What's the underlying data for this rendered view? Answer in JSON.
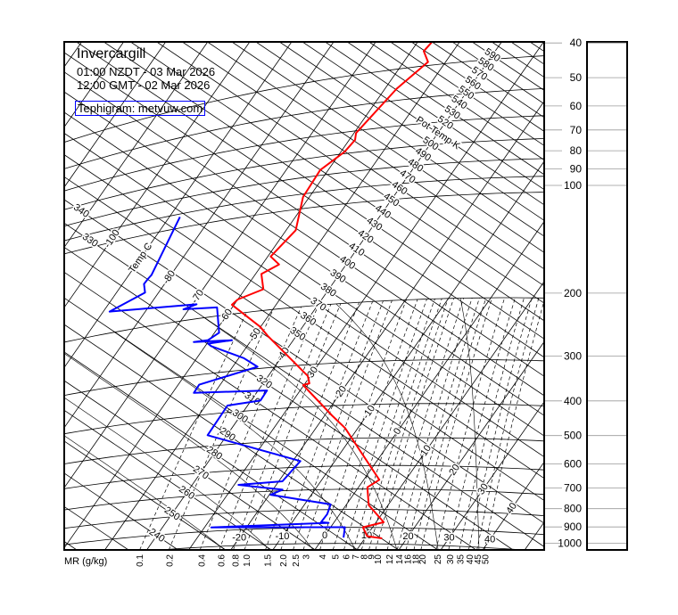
{
  "header": {
    "title": "Invercargill",
    "local_time": "01:00 NZDT - 03 Mar 2026",
    "gmt_time": "12:00 GMT - 02 Mar 2026",
    "credit": "Tephigram: metvuw.com"
  },
  "chart_data": {
    "type": "line",
    "subtype": "tephigram",
    "isotherm_axis_label": "Temp C",
    "isentrope_axis_label": "Pot Temp K",
    "mixing_ratio_axis_label": "MR (g/kg)",
    "pressure_ticks": [
      40,
      50,
      60,
      70,
      80,
      90,
      100,
      200,
      300,
      400,
      500,
      600,
      700,
      800,
      900,
      1000
    ],
    "isotherm_labels_diagonal": [
      "-100",
      "Temp C",
      "-80",
      "-70",
      "-60",
      "-50",
      "-40",
      "-30",
      "-20",
      "-10",
      "0",
      "10",
      "20",
      "30",
      "40",
      "50"
    ],
    "isotherm_labels_bottom": [
      "-20",
      "-10",
      "0",
      "10",
      "20",
      "30",
      "40"
    ],
    "isentrope_labels": [
      "240",
      "250",
      "260",
      "270",
      "280",
      "290",
      "300",
      "310",
      "320",
      "330",
      "340",
      "350",
      "360",
      "370",
      "380",
      "390",
      "400",
      "410",
      "420",
      "430",
      "440",
      "450",
      "460",
      "470",
      "480",
      "490",
      "500",
      "Pot Temp K",
      "520",
      "530",
      "540",
      "550",
      "560",
      "570",
      "580",
      "590"
    ],
    "mixing_ratio_labels": [
      "0.1",
      "0.2",
      "0.4",
      "0.6",
      "0.8",
      "1.0",
      "1.5",
      "2.0",
      "2.5",
      "3",
      "4",
      "5",
      "6",
      "7",
      "8",
      "9",
      "10",
      "12",
      "14",
      "16",
      "18",
      "20",
      "25",
      "30",
      "35",
      "40",
      "45",
      "50"
    ],
    "temperature_range_c": [
      -160,
      60
    ],
    "potential_temperature_range_k": [
      200,
      700
    ],
    "pressure_range_hpa": [
      1000,
      40
    ],
    "grid": true,
    "colors": {
      "temperature": "#ff0000",
      "dewpoint": "#0000ff",
      "credit_border": "#0000ff",
      "grid": "#000000"
    },
    "temperature_profile": [
      {
        "p": 965,
        "t": 14.1
      },
      {
        "p": 953,
        "t": 10.2
      },
      {
        "p": 899,
        "t": 7.7
      },
      {
        "p": 869,
        "t": 11.8
      },
      {
        "p": 778,
        "t": 5.4
      },
      {
        "p": 692,
        "t": 2.1
      },
      {
        "p": 659,
        "t": 3.7
      },
      {
        "p": 466,
        "t": -13.1
      },
      {
        "p": 427,
        "t": -18.3
      },
      {
        "p": 344,
        "t": -30.2
      },
      {
        "p": 341,
        "t": -29.0
      },
      {
        "p": 324,
        "t": -30.6
      },
      {
        "p": 240,
        "t": -46.8
      },
      {
        "p": 224,
        "t": -50.1
      },
      {
        "p": 187,
        "t": -60.5
      },
      {
        "p": 181,
        "t": -60.0
      },
      {
        "p": 172,
        "t": -55.6
      },
      {
        "p": 154,
        "t": -58.6
      },
      {
        "p": 146,
        "t": -56.0
      },
      {
        "p": 137,
        "t": -59.3
      },
      {
        "p": 116,
        "t": -57.7
      },
      {
        "p": 92,
        "t": -61.5
      },
      {
        "p": 77,
        "t": -61.9
      },
      {
        "p": 69,
        "t": -59.1
      },
      {
        "p": 64,
        "t": -58.6
      },
      {
        "p": 61,
        "t": -59.5
      },
      {
        "p": 46,
        "t": -57.2
      },
      {
        "p": 39,
        "t": -54.2
      },
      {
        "p": 36,
        "t": -57.0
      },
      {
        "p": 34,
        "t": -56.6
      }
    ],
    "dewpoint_profile": [
      {
        "p": 962,
        "t": 4.8
      },
      {
        "p": 899,
        "t": 3.4
      },
      {
        "p": 877,
        "t": -28.4
      },
      {
        "p": 873,
        "t": -1.2
      },
      {
        "p": 869,
        "t": -3.1
      },
      {
        "p": 824,
        "t": -3.0
      },
      {
        "p": 773,
        "t": -3.8
      },
      {
        "p": 717,
        "t": -19.7
      },
      {
        "p": 695,
        "t": -17.7
      },
      {
        "p": 663,
        "t": -29.0
      },
      {
        "p": 657,
        "t": -19.1
      },
      {
        "p": 576,
        "t": -18.2
      },
      {
        "p": 463,
        "t": -44.6
      },
      {
        "p": 381,
        "t": -44.8
      },
      {
        "p": 375,
        "t": -37.8
      },
      {
        "p": 351,
        "t": -37.9
      },
      {
        "p": 340,
        "t": -54.9
      },
      {
        "p": 322,
        "t": -55.0
      },
      {
        "p": 296,
        "t": -44.1
      },
      {
        "p": 276,
        "t": -48.8
      },
      {
        "p": 247,
        "t": -58.6
      },
      {
        "p": 242,
        "t": -59.7
      },
      {
        "p": 241,
        "t": -54.6
      },
      {
        "p": 236,
        "t": -63.4
      },
      {
        "p": 236,
        "t": -60.3
      },
      {
        "p": 226,
        "t": -58.9
      },
      {
        "p": 188,
        "t": -63.6
      },
      {
        "p": 184,
        "t": -71.3
      },
      {
        "p": 180,
        "t": -69.0
      },
      {
        "p": 170,
        "t": -88.5
      },
      {
        "p": 155,
        "t": -83.2
      },
      {
        "p": 145,
        "t": -84.9
      },
      {
        "p": 140,
        "t": -84.8
      },
      {
        "p": 137,
        "t": -84.6
      },
      {
        "p": 92,
        "t": -87.5
      }
    ]
  }
}
